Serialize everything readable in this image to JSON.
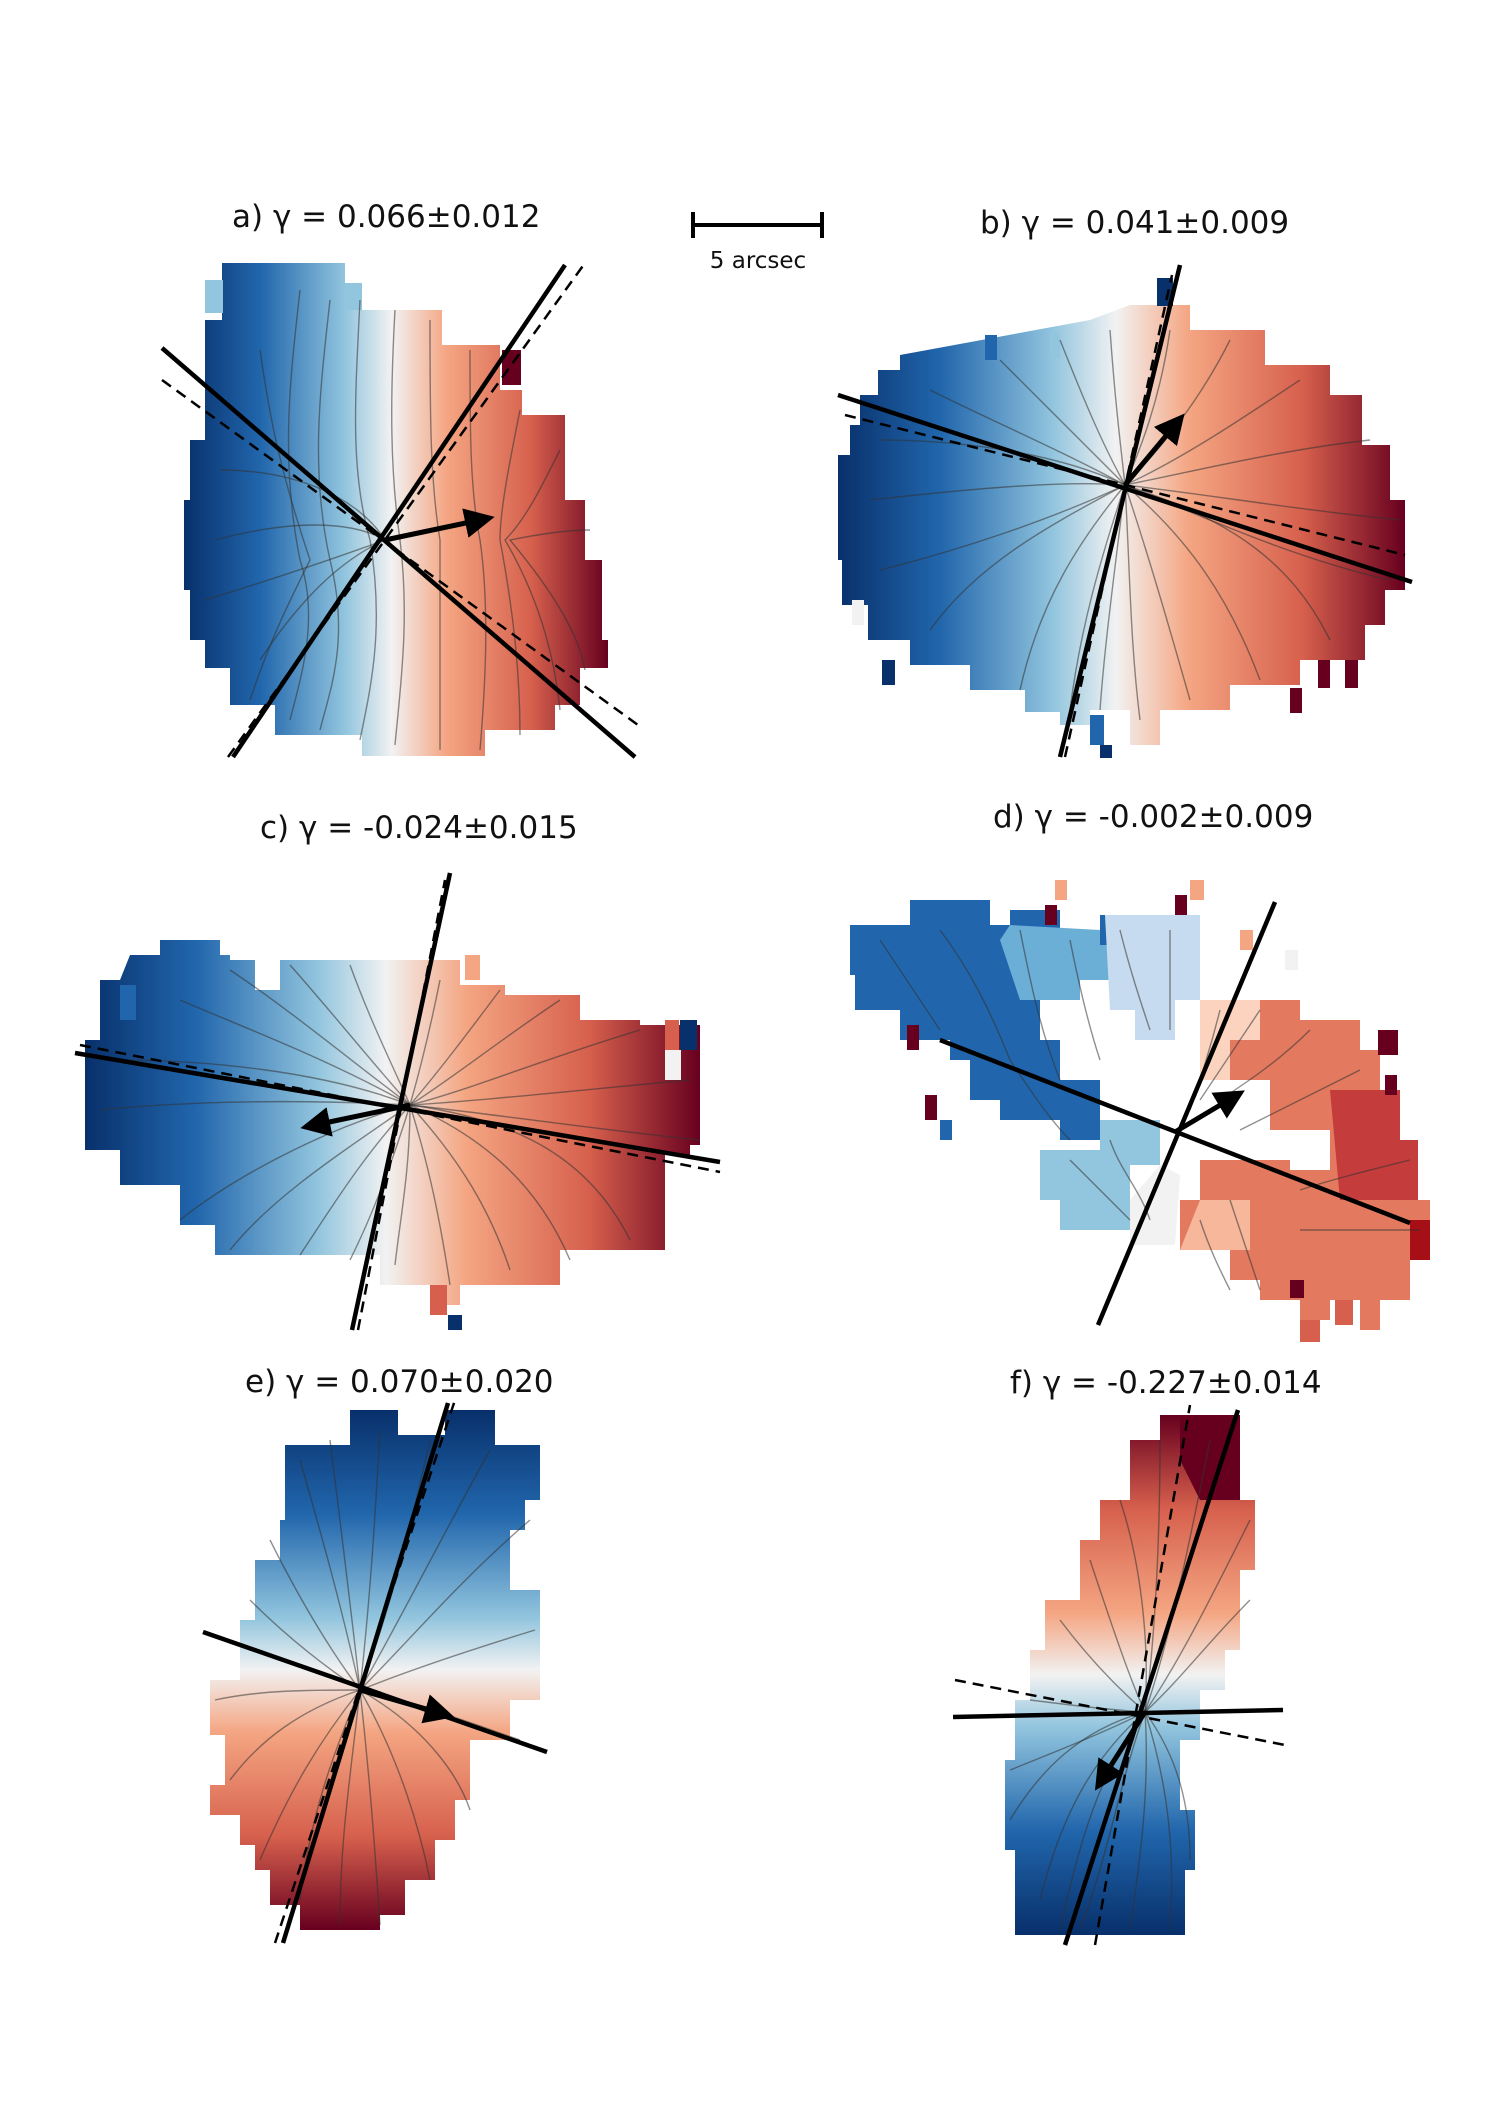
{
  "figure": {
    "scale_bar": {
      "label": "5 arcsec"
    },
    "colors": {
      "blue_dark": "#08306b",
      "blue": "#2166ac",
      "blue_light": "#d1e5f0",
      "red_light": "#fddbc7",
      "red": "#d6604d",
      "red_dark": "#67001f",
      "line": "#000000",
      "contour": "#444444"
    },
    "panels": [
      {
        "id": "a",
        "title": "a) γ = 0.066±0.012",
        "gamma": 0.066,
        "gamma_err": 0.012,
        "warm_side": "right"
      },
      {
        "id": "b",
        "title": "b) γ = 0.041±0.009",
        "gamma": 0.041,
        "gamma_err": 0.009,
        "warm_side": "right"
      },
      {
        "id": "c",
        "title": "c) γ = -0.024±0.015",
        "gamma": -0.024,
        "gamma_err": 0.015,
        "warm_side": "right"
      },
      {
        "id": "d",
        "title": "d) γ = -0.002±0.009",
        "gamma": -0.002,
        "gamma_err": 0.009,
        "warm_side": "right"
      },
      {
        "id": "e",
        "title": "e) γ = 0.070±0.020",
        "gamma": 0.07,
        "gamma_err": 0.02,
        "warm_side": "bottom"
      },
      {
        "id": "f",
        "title": "f) γ = -0.227±0.014",
        "gamma": -0.227,
        "gamma_err": 0.014,
        "warm_side": "top"
      }
    ]
  }
}
